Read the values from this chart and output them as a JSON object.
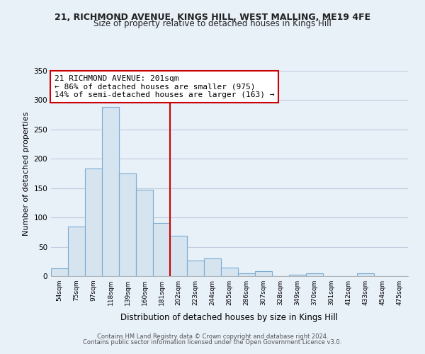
{
  "title1": "21, RICHMOND AVENUE, KINGS HILL, WEST MALLING, ME19 4FE",
  "title2": "Size of property relative to detached houses in Kings Hill",
  "xlabel": "Distribution of detached houses by size in Kings Hill",
  "ylabel": "Number of detached properties",
  "bin_labels": [
    "54sqm",
    "75sqm",
    "97sqm",
    "118sqm",
    "139sqm",
    "160sqm",
    "181sqm",
    "202sqm",
    "223sqm",
    "244sqm",
    "265sqm",
    "286sqm",
    "307sqm",
    "328sqm",
    "349sqm",
    "370sqm",
    "391sqm",
    "412sqm",
    "433sqm",
    "454sqm",
    "475sqm"
  ],
  "bar_heights": [
    13,
    85,
    184,
    288,
    175,
    147,
    91,
    69,
    27,
    30,
    14,
    5,
    9,
    0,
    2,
    5,
    0,
    0,
    5,
    0,
    0
  ],
  "bar_color": "#d6e4f0",
  "bar_edge_color": "#7aadd4",
  "vline_color": "#cc0000",
  "annotation_title": "21 RICHMOND AVENUE: 201sqm",
  "annotation_line1": "← 86% of detached houses are smaller (975)",
  "annotation_line2": "14% of semi-detached houses are larger (163) →",
  "annotation_box_facecolor": "#ffffff",
  "annotation_box_edgecolor": "#cc0000",
  "ylim": [
    0,
    350
  ],
  "yticks": [
    0,
    50,
    100,
    150,
    200,
    250,
    300,
    350
  ],
  "footer1": "Contains HM Land Registry data © Crown copyright and database right 2024.",
  "footer2": "Contains public sector information licensed under the Open Government Licence v3.0.",
  "bg_color": "#e8f0f8",
  "grid_color": "#c0ccdd",
  "title1_fontsize": 9,
  "title2_fontsize": 8.5,
  "ylabel_fontsize": 8,
  "xlabel_fontsize": 8.5
}
